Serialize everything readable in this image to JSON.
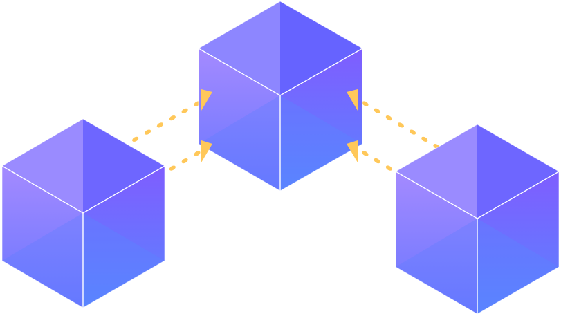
{
  "diagram": {
    "background": "#ffffff",
    "cube_colors": {
      "top_left_light": "#8f86ff",
      "top_right_dark": "#6b66ff",
      "left_face_top": "#9d84ff",
      "left_face_bottom": "#6d6cff",
      "right_face_top": "#7a5cff",
      "right_face_bottom": "#5d86ff",
      "edge": "#ffffff"
    },
    "connector_color": "#ffc85a",
    "nodes": [
      {
        "id": "left-cube"
      },
      {
        "id": "top-cube"
      },
      {
        "id": "right-cube"
      }
    ],
    "connections": [
      {
        "from": "left-cube",
        "to": "top-cube",
        "count": 2,
        "direction": "into-top-cube"
      },
      {
        "from": "right-cube",
        "to": "top-cube",
        "count": 2,
        "direction": "into-top-cube"
      }
    ]
  }
}
